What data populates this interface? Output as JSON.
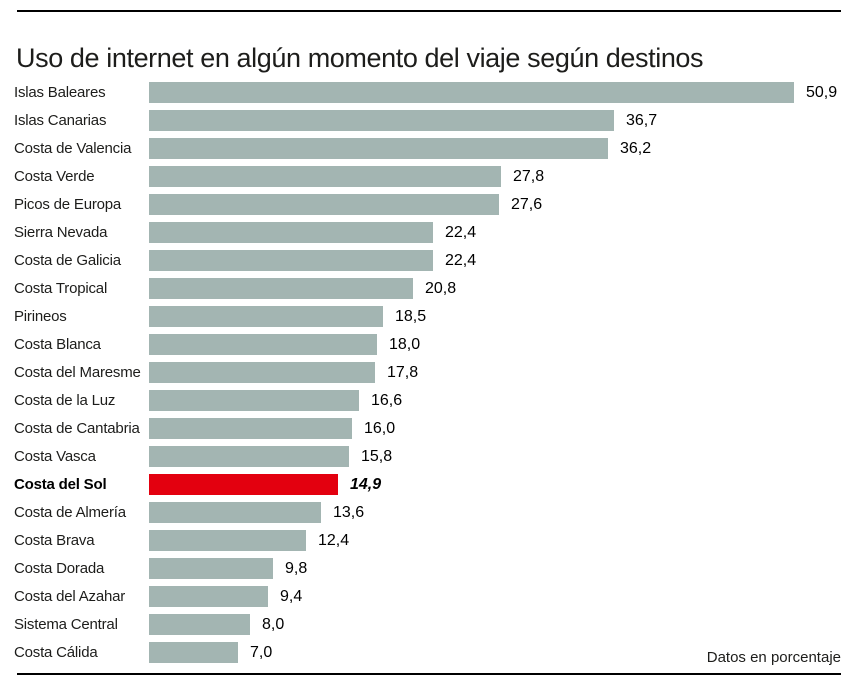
{
  "chart_data": {
    "type": "bar",
    "orientation": "horizontal",
    "title": "Uso de internet en algún momento del viaje según destinos",
    "note": "Datos en porcentaje",
    "xlim": [
      0,
      50.9
    ],
    "grid": false,
    "legend": false,
    "bar_color": "#a3b5b2",
    "highlight_color": "#e3000f",
    "highlighted_category": "Costa del Sol",
    "categories": [
      "Islas Baleares",
      "Islas Canarias",
      "Costa de Valencia",
      "Costa Verde",
      "Picos de Europa",
      "Sierra Nevada",
      "Costa de Galicia",
      "Costa Tropical",
      "Pirineos",
      "Costa Blanca",
      "Costa del Maresme",
      "Costa de la Luz",
      "Costa de Cantabria",
      "Costa Vasca",
      "Costa del Sol",
      "Costa de Almería",
      "Costa Brava",
      "Costa Dorada",
      "Costa del Azahar",
      "Sistema Central",
      "Costa Cálida"
    ],
    "values": [
      50.9,
      36.7,
      36.2,
      27.8,
      27.6,
      22.4,
      22.4,
      20.8,
      18.5,
      18.0,
      17.8,
      16.6,
      16.0,
      15.8,
      14.9,
      13.6,
      12.4,
      9.8,
      9.4,
      8.0,
      7.0
    ],
    "bars": [
      {
        "label": "Islas Baleares",
        "value": 50.9,
        "display": "50,9",
        "highlight": false
      },
      {
        "label": "Islas Canarias",
        "value": 36.7,
        "display": "36,7",
        "highlight": false
      },
      {
        "label": "Costa de Valencia",
        "value": 36.2,
        "display": "36,2",
        "highlight": false
      },
      {
        "label": "Costa Verde",
        "value": 27.8,
        "display": "27,8",
        "highlight": false
      },
      {
        "label": "Picos de Europa",
        "value": 27.6,
        "display": "27,6",
        "highlight": false
      },
      {
        "label": "Sierra Nevada",
        "value": 22.4,
        "display": "22,4",
        "highlight": false
      },
      {
        "label": "Costa de Galicia",
        "value": 22.4,
        "display": "22,4",
        "highlight": false
      },
      {
        "label": "Costa Tropical",
        "value": 20.8,
        "display": "20,8",
        "highlight": false
      },
      {
        "label": "Pirineos",
        "value": 18.5,
        "display": "18,5",
        "highlight": false
      },
      {
        "label": "Costa Blanca",
        "value": 18.0,
        "display": "18,0",
        "highlight": false
      },
      {
        "label": "Costa del Maresme",
        "value": 17.8,
        "display": "17,8",
        "highlight": false
      },
      {
        "label": "Costa de la Luz",
        "value": 16.6,
        "display": "16,6",
        "highlight": false
      },
      {
        "label": "Costa de Cantabria",
        "value": 16.0,
        "display": "16,0",
        "highlight": false
      },
      {
        "label": "Costa Vasca",
        "value": 15.8,
        "display": "15,8",
        "highlight": false
      },
      {
        "label": "Costa del Sol",
        "value": 14.9,
        "display": "14,9",
        "highlight": true
      },
      {
        "label": "Costa de Almería",
        "value": 13.6,
        "display": "13,6",
        "highlight": false
      },
      {
        "label": "Costa Brava",
        "value": 12.4,
        "display": "12,4",
        "highlight": false
      },
      {
        "label": "Costa Dorada",
        "value": 9.8,
        "display": "9,8",
        "highlight": false
      },
      {
        "label": "Costa del Azahar",
        "value": 9.4,
        "display": "9,4",
        "highlight": false
      },
      {
        "label": "Sistema Central",
        "value": 8.0,
        "display": "8,0",
        "highlight": false
      },
      {
        "label": "Costa Cálida",
        "value": 7.0,
        "display": "7,0",
        "highlight": false
      }
    ]
  }
}
